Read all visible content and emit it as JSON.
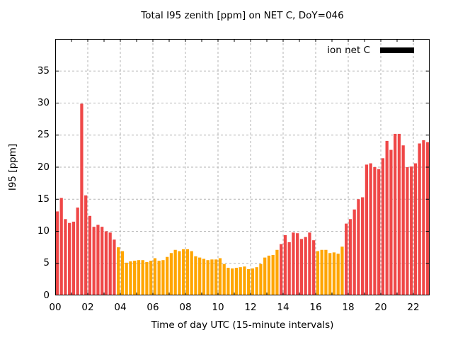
{
  "title": "Total I95 zenith [ppm] on NET C, DoY=046",
  "legend": {
    "label": "ion net C",
    "swatch_color": "#000000"
  },
  "colors": {
    "red_bar": "#ef4747",
    "orange_bar": "#ffa500",
    "grid": "#b3b3b3",
    "axis": "#000000",
    "background": "#ffffff"
  },
  "chart_data": {
    "type": "bar",
    "title": "Total I95 zenith [ppm] on NET C, DoY=046",
    "xlabel": "Time of day UTC (15-minute intervals)",
    "ylabel": "I95 [ppm]",
    "legend_label": "ion net C",
    "interval_minutes": 15,
    "x_range_hours": [
      0,
      23
    ],
    "ylim": [
      0,
      40
    ],
    "grid": "dashed, at labeled ticks",
    "legend_position": "top-right inside",
    "x_tick_hours": [
      0,
      2,
      4,
      6,
      8,
      10,
      12,
      14,
      16,
      18,
      20,
      22
    ],
    "x_tick_labels": [
      "00",
      "02",
      "04",
      "06",
      "08",
      "10",
      "12",
      "14",
      "16",
      "18",
      "20",
      "22"
    ],
    "x_minor_tick_every_hours": 1,
    "y_ticks": [
      0,
      5,
      10,
      15,
      20,
      25,
      30,
      35
    ],
    "y_tick_labels": [
      "0",
      "5",
      "10",
      "15",
      "20",
      "25",
      "30",
      "35"
    ],
    "bars": [
      [
        "00:00",
        13.1,
        "red"
      ],
      [
        "00:15",
        15.2,
        "red"
      ],
      [
        "00:30",
        11.9,
        "red"
      ],
      [
        "00:45",
        11.3,
        "red"
      ],
      [
        "01:00",
        11.5,
        "red"
      ],
      [
        "01:15",
        13.7,
        "red"
      ],
      [
        "01:30",
        29.9,
        "red"
      ],
      [
        "01:45",
        15.6,
        "red"
      ],
      [
        "02:00",
        12.4,
        "red"
      ],
      [
        "02:15",
        10.7,
        "red"
      ],
      [
        "02:30",
        11.0,
        "red"
      ],
      [
        "02:45",
        10.7,
        "red"
      ],
      [
        "03:00",
        10.0,
        "red"
      ],
      [
        "03:15",
        9.8,
        "red"
      ],
      [
        "03:30",
        8.7,
        "red"
      ],
      [
        "03:45",
        7.5,
        "orange"
      ],
      [
        "04:00",
        6.9,
        "orange"
      ],
      [
        "04:15",
        5.1,
        "orange"
      ],
      [
        "04:30",
        5.3,
        "orange"
      ],
      [
        "04:45",
        5.4,
        "orange"
      ],
      [
        "05:00",
        5.5,
        "orange"
      ],
      [
        "05:15",
        5.5,
        "orange"
      ],
      [
        "05:30",
        5.2,
        "orange"
      ],
      [
        "05:45",
        5.4,
        "orange"
      ],
      [
        "06:00",
        5.8,
        "orange"
      ],
      [
        "06:15",
        5.4,
        "orange"
      ],
      [
        "06:30",
        5.5,
        "orange"
      ],
      [
        "06:45",
        6.0,
        "orange"
      ],
      [
        "07:00",
        6.6,
        "orange"
      ],
      [
        "07:15",
        7.1,
        "orange"
      ],
      [
        "07:30",
        6.9,
        "orange"
      ],
      [
        "07:45",
        7.2,
        "orange"
      ],
      [
        "08:00",
        7.2,
        "orange"
      ],
      [
        "08:15",
        6.9,
        "orange"
      ],
      [
        "08:30",
        6.1,
        "orange"
      ],
      [
        "08:45",
        5.9,
        "orange"
      ],
      [
        "09:00",
        5.7,
        "orange"
      ],
      [
        "09:15",
        5.5,
        "orange"
      ],
      [
        "09:30",
        5.6,
        "orange"
      ],
      [
        "09:45",
        5.6,
        "orange"
      ],
      [
        "10:00",
        5.8,
        "orange"
      ],
      [
        "10:15",
        4.9,
        "orange"
      ],
      [
        "10:30",
        4.3,
        "orange"
      ],
      [
        "10:45",
        4.2,
        "orange"
      ],
      [
        "11:00",
        4.3,
        "orange"
      ],
      [
        "11:15",
        4.4,
        "orange"
      ],
      [
        "11:30",
        4.5,
        "orange"
      ],
      [
        "11:45",
        4.1,
        "orange"
      ],
      [
        "12:00",
        4.2,
        "orange"
      ],
      [
        "12:15",
        4.4,
        "orange"
      ],
      [
        "12:30",
        4.9,
        "orange"
      ],
      [
        "12:45",
        5.9,
        "orange"
      ],
      [
        "13:00",
        6.2,
        "orange"
      ],
      [
        "13:15",
        6.3,
        "orange"
      ],
      [
        "13:30",
        7.1,
        "orange"
      ],
      [
        "13:45",
        8.0,
        "red"
      ],
      [
        "14:00",
        9.4,
        "red"
      ],
      [
        "14:15",
        8.3,
        "red"
      ],
      [
        "14:30",
        9.8,
        "red"
      ],
      [
        "14:45",
        9.7,
        "red"
      ],
      [
        "15:00",
        8.8,
        "red"
      ],
      [
        "15:15",
        9.1,
        "red"
      ],
      [
        "15:30",
        9.8,
        "red"
      ],
      [
        "15:45",
        8.6,
        "red"
      ],
      [
        "16:00",
        6.9,
        "orange"
      ],
      [
        "16:15",
        7.1,
        "orange"
      ],
      [
        "16:30",
        7.1,
        "orange"
      ],
      [
        "16:45",
        6.6,
        "orange"
      ],
      [
        "17:00",
        6.7,
        "orange"
      ],
      [
        "17:15",
        6.5,
        "orange"
      ],
      [
        "17:30",
        7.6,
        "orange"
      ],
      [
        "17:45",
        11.2,
        "red"
      ],
      [
        "18:00",
        11.9,
        "red"
      ],
      [
        "18:15",
        13.4,
        "red"
      ],
      [
        "18:30",
        15.0,
        "red"
      ],
      [
        "18:45",
        15.3,
        "red"
      ],
      [
        "19:00",
        20.4,
        "red"
      ],
      [
        "19:15",
        20.6,
        "red"
      ],
      [
        "19:30",
        20.0,
        "red"
      ],
      [
        "19:45",
        19.7,
        "red"
      ],
      [
        "20:00",
        21.4,
        "red"
      ],
      [
        "20:15",
        24.1,
        "red"
      ],
      [
        "20:30",
        22.7,
        "red"
      ],
      [
        "20:45",
        25.2,
        "red"
      ],
      [
        "21:00",
        25.2,
        "red"
      ],
      [
        "21:15",
        23.4,
        "red"
      ],
      [
        "21:30",
        20.0,
        "red"
      ],
      [
        "21:45",
        20.1,
        "red"
      ],
      [
        "22:00",
        20.6,
        "red"
      ],
      [
        "22:15",
        23.7,
        "red"
      ],
      [
        "22:30",
        24.2,
        "red"
      ],
      [
        "22:45",
        23.9,
        "red"
      ]
    ]
  }
}
